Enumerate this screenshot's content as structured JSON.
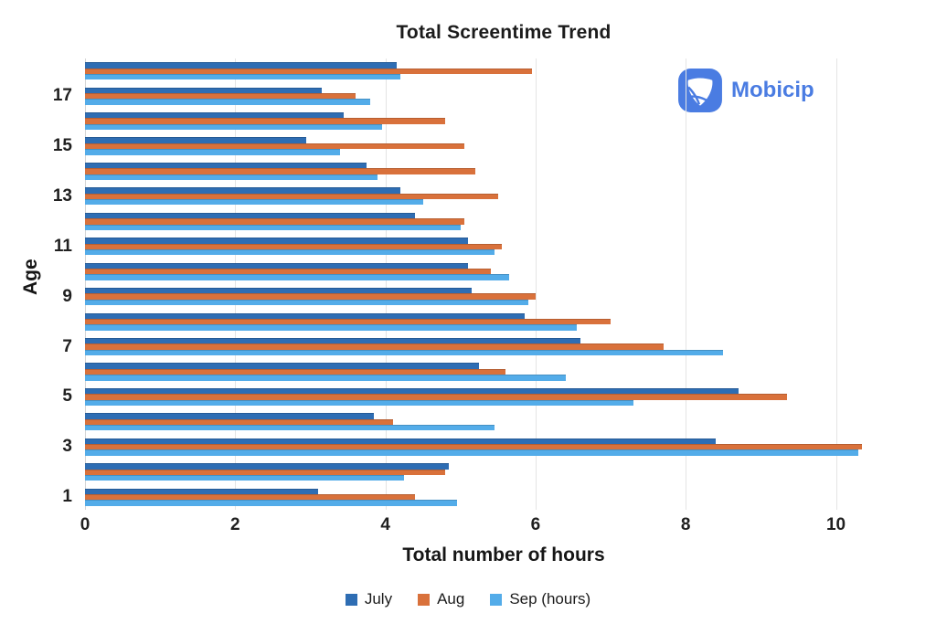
{
  "title": "Total Screentime Trend",
  "logo": {
    "text": "Mobicip",
    "color": "#4a7ce2"
  },
  "chart_data": {
    "type": "bar",
    "orientation": "horizontal",
    "title": "Total Screentime Trend",
    "xlabel": "Total number of hours",
    "ylabel": "Age",
    "xlim": [
      0,
      11.15
    ],
    "xticks": [
      0,
      2,
      4,
      6,
      8,
      10
    ],
    "visible_ytick_labels": [
      "17",
      "15",
      "13",
      "11",
      "9",
      "7",
      "5",
      "3",
      "1"
    ],
    "categories": [
      18,
      17,
      16,
      15,
      14,
      13,
      12,
      11,
      10,
      9,
      8,
      7,
      6,
      5,
      4,
      3,
      2,
      1
    ],
    "series": [
      {
        "name": "July",
        "color": "#2E6DB3",
        "values": [
          4.15,
          3.15,
          3.45,
          2.95,
          3.75,
          4.2,
          4.4,
          5.1,
          5.1,
          5.15,
          5.85,
          6.6,
          5.25,
          8.7,
          3.85,
          8.4,
          4.85,
          3.1
        ]
      },
      {
        "name": "Aug",
        "color": "#D9713B",
        "values": [
          5.95,
          3.6,
          4.8,
          5.05,
          5.2,
          5.5,
          5.05,
          5.55,
          5.4,
          6.0,
          7.0,
          7.7,
          5.6,
          9.35,
          4.1,
          10.35,
          4.8,
          4.4
        ]
      },
      {
        "name": "Sep (hours)",
        "color": "#53ACE9",
        "values": [
          4.2,
          3.8,
          3.95,
          3.4,
          3.9,
          4.5,
          5.0,
          5.45,
          5.65,
          5.9,
          6.55,
          8.5,
          6.4,
          7.3,
          5.45,
          10.3,
          4.25,
          4.95
        ]
      }
    ],
    "legend_position": "bottom",
    "grid": true,
    "gridline_color": "#e4e4e4",
    "background_color": "#ffffff"
  }
}
